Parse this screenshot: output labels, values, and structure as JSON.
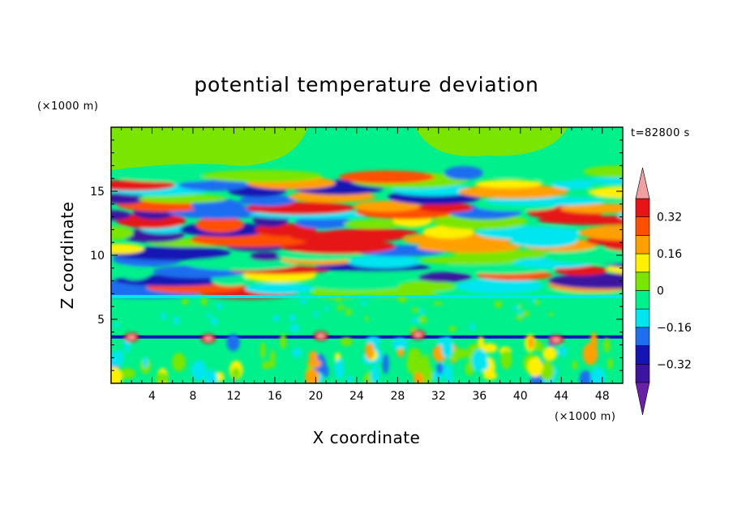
{
  "chart_data": {
    "type": "heatmap",
    "title": "potential temperature deviation",
    "xlabel": "X coordinate",
    "ylabel": "Z coordinate",
    "x_unit": "(×1000 m)",
    "y_unit": "(×1000 m)",
    "time_label": "t=82800 s",
    "xlim": [
      0,
      50
    ],
    "ylim": [
      0,
      20
    ],
    "x_ticks": [
      4,
      8,
      12,
      16,
      20,
      24,
      28,
      32,
      36,
      40,
      44,
      48
    ],
    "x_tick_labels": [
      "4",
      "8",
      "12",
      "16",
      "20",
      "24",
      "28",
      "32",
      "36",
      "40",
      "44",
      "48"
    ],
    "y_ticks": [
      5,
      10,
      15
    ],
    "y_tick_labels": [
      "5",
      "10",
      "15"
    ],
    "grid": false,
    "colorbar": {
      "placement": "right",
      "extend": "both",
      "levels": [
        -0.4,
        -0.32,
        -0.24,
        -0.16,
        -0.08,
        0,
        0.08,
        0.16,
        0.24,
        0.32,
        0.4
      ],
      "colors": [
        "#6a1fa8",
        "#3c14a0",
        "#1414b4",
        "#1e6ef0",
        "#00e6f0",
        "#00f08c",
        "#7ae600",
        "#fff000",
        "#ffa000",
        "#ff5000",
        "#e61414",
        "#f0a0a0"
      ],
      "tick_values": [
        0.32,
        0.16,
        0,
        -0.16,
        -0.32
      ],
      "tick_labels": [
        "0.32",
        "0.16",
        "0",
        "−0.16",
        "−0.32"
      ]
    }
  }
}
